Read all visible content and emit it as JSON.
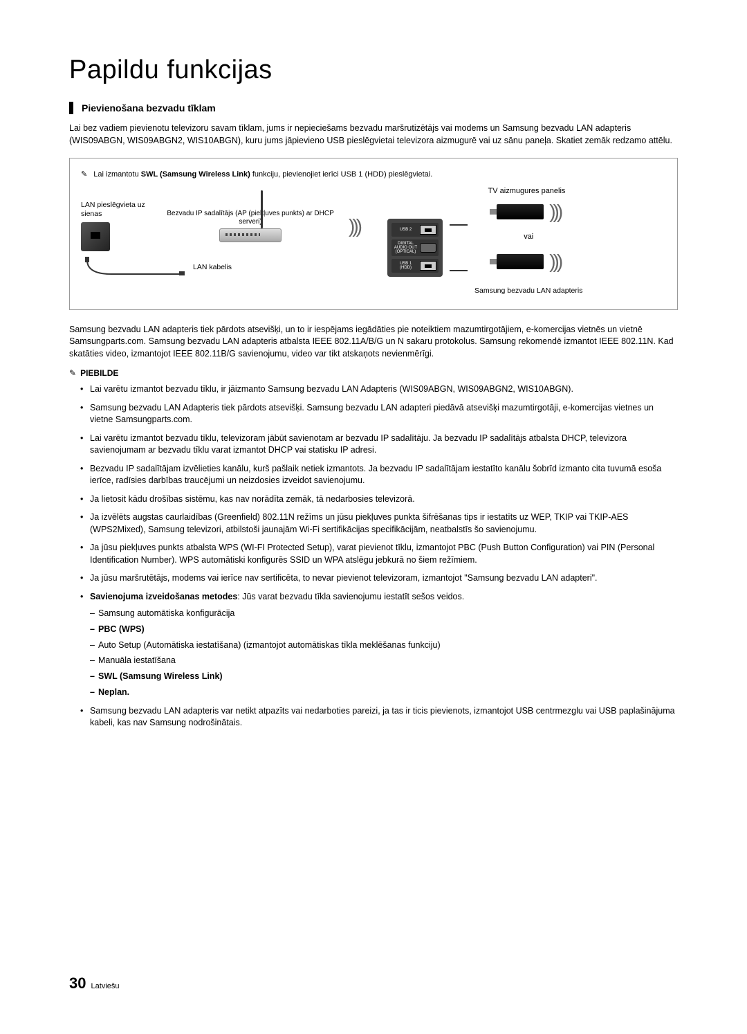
{
  "title": "Papildu funkcijas",
  "section_title": "Pievienošana bezvadu tīklam",
  "intro": "Lai bez vadiem pievienotu televizoru savam tīklam, jums ir nepieciešams bezvadu maršrutizētājs vai modems un Samsung bezvadu LAN adapteris (WIS09ABGN, WIS09ABGN2, WIS10ABGN), kuru jums jāpievieno USB pieslēgvietai televizora aizmugurē vai uz sānu paneļa. Skatiet zemāk redzamo attēlu.",
  "diagram": {
    "note_prefix": "Lai izmantotu ",
    "note_bold": "SWL (Samsung Wireless Link)",
    "note_suffix": " funkciju, pievienojiet ierīci USB 1 (HDD) pieslēgvietai.",
    "tv_panel": "TV aizmugures panelis",
    "lan_jack": "LAN pieslēgvieta uz sienas",
    "router": "Bezvadu IP sadalītājs (AP (piekļuves punkts) ar DHCP serveri)",
    "lan_cable": "LAN kabelis",
    "port_usb2": "USB 2",
    "port_audio": "DIGITAL AUDIO OUT (OPTICAL)",
    "port_usb1": "USB 1 (HDD)",
    "vai": "vai",
    "adapter": "Samsung bezvadu LAN adapteris"
  },
  "body_text": "Samsung bezvadu LAN adapteris tiek pārdots atsevišķi, un to ir iespējams iegādāties pie noteiktiem mazumtirgotājiem, e-komercijas vietnēs un vietnē Samsungparts.com. Samsung bezvadu LAN adapteris atbalsta IEEE 802.11A/B/G un N sakaru protokolus. Samsung rekomendē izmantot IEEE 802.11N. Kad skatāties video, izmantojot IEEE 802.11B/G savienojumu, video var tikt atskaņots nevienmērīgi.",
  "note_header": "PIEBILDE",
  "bullets": [
    "Lai varētu izmantot bezvadu tīklu, ir jāizmanto Samsung bezvadu LAN Adapteris (WIS09ABGN, WIS09ABGN2, WIS10ABGN).",
    "Samsung bezvadu LAN Adapteris tiek pārdots atsevišķi. Samsung bezvadu LAN adapteri piedāvā atsevišķi mazumtirgotāji, e-komercijas vietnes un vietne Samsungparts.com.",
    "Lai varētu izmantot bezvadu tīklu, televizoram jābūt savienotam ar bezvadu IP sadalītāju. Ja bezvadu IP sadalītājs atbalsta DHCP, televizora savienojumam ar bezvadu tīklu varat izmantot DHCP vai statisku IP adresi.",
    "Bezvadu IP sadalītājam izvēlieties kanālu, kurš pašlaik netiek izmantots. Ja bezvadu IP sadalītājam iestatīto kanālu šobrīd izmanto cita tuvumā esoša ierīce, radīsies darbības traucējumi un neizdosies izveidot savienojumu.",
    "Ja lietosit kādu drošības sistēmu, kas nav norādīta zemāk, tā nedarbosies televizorā.",
    "Ja izvēlēts augstas caurlaidības (Greenfield) 802.11N režīms un jūsu piekļuves punkta šifrēšanas tips ir iestatīts uz WEP, TKIP vai TKIP-AES (WPS2Mixed), Samsung televizori, atbilstoši jaunajām Wi-Fi sertifikācijas specifikācijām, neatbalstīs šo savienojumu.",
    "Ja jūsu piekļuves punkts atbalsta WPS (WI-FI Protected Setup), varat pievienot tīklu, izmantojot PBC (Push Button Configuration) vai PIN (Personal Identification Number). WPS automātiski konfigurēs SSID un WPA atslēgu jebkurā no šiem režīmiem.",
    "Ja jūsu maršrutētājs, modems vai ierīce nav sertificēta, to nevar pievienot televizoram, izmantojot \"Samsung bezvadu LAN adapteri\"."
  ],
  "methods": {
    "intro_bold": "Savienojuma izveidošanas metodes",
    "intro_rest": ": Jūs varat bezvadu tīkla savienojumu iestatīt sešos veidos.",
    "items": [
      {
        "text": "Samsung automātiska konfigurācija",
        "bold": false
      },
      {
        "text": "PBC (WPS)",
        "bold": true
      },
      {
        "text": "Auto Setup (Automātiska iestatīšana) (izmantojot automātiskas tīkla meklēšanas funkciju)",
        "bold": false
      },
      {
        "text": "Manuāla iestatīšana",
        "bold": false
      },
      {
        "text": "SWL (Samsung Wireless Link)",
        "bold": true
      },
      {
        "text": "Neplan.",
        "bold": true
      }
    ]
  },
  "last_bullet": "Samsung bezvadu LAN adapteris var netikt atpazīts vai nedarboties pareizi, ja tas ir ticis pievienots, izmantojot USB centrmezglu vai USB paplašinājuma kabeli, kas nav Samsung nodrošinātais.",
  "footer": {
    "page": "30",
    "lang": "Latviešu"
  }
}
